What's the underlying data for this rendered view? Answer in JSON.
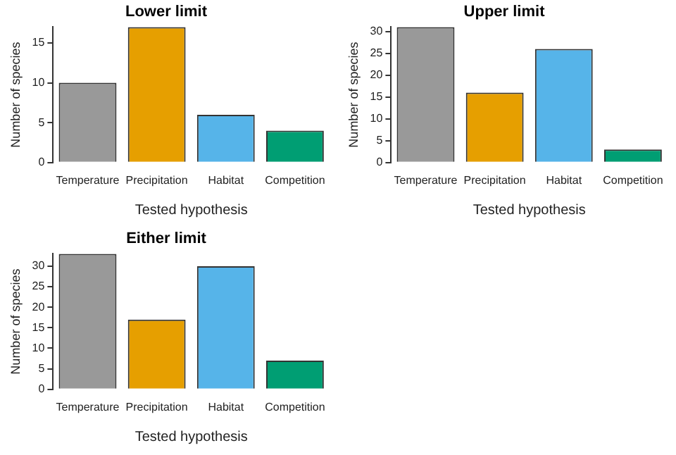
{
  "chart_data": [
    {
      "type": "bar",
      "title": "Lower limit",
      "xlabel": "Tested hypothesis",
      "ylabel": "Number of species",
      "categories": [
        "Temperature",
        "Precipitation",
        "Habitat",
        "Competition"
      ],
      "values": [
        10,
        17,
        6,
        4
      ],
      "colors": [
        "#999999",
        "#e69f00",
        "#56b4e9",
        "#009e73"
      ],
      "ylim": [
        0,
        17
      ],
      "yticks": [
        0,
        5,
        10,
        15
      ],
      "grid": false,
      "legend": false
    },
    {
      "type": "bar",
      "title": "Upper limit",
      "xlabel": "Tested hypothesis",
      "ylabel": "Number of species",
      "categories": [
        "Temperature",
        "Precipitation",
        "Habitat",
        "Competition"
      ],
      "values": [
        31,
        16,
        26,
        3
      ],
      "colors": [
        "#999999",
        "#e69f00",
        "#56b4e9",
        "#009e73"
      ],
      "ylim": [
        0,
        31
      ],
      "yticks": [
        0,
        5,
        10,
        15,
        20,
        25,
        30
      ],
      "grid": false,
      "legend": false
    },
    {
      "type": "bar",
      "title": "Either limit",
      "xlabel": "Tested hypothesis",
      "ylabel": "Number of species",
      "categories": [
        "Temperature",
        "Precipitation",
        "Habitat",
        "Competition"
      ],
      "values": [
        33,
        17,
        30,
        7
      ],
      "colors": [
        "#999999",
        "#e69f00",
        "#56b4e9",
        "#009e73"
      ],
      "ylim": [
        0,
        33
      ],
      "yticks": [
        0,
        5,
        10,
        15,
        20,
        25,
        30
      ],
      "grid": false,
      "legend": false
    }
  ]
}
